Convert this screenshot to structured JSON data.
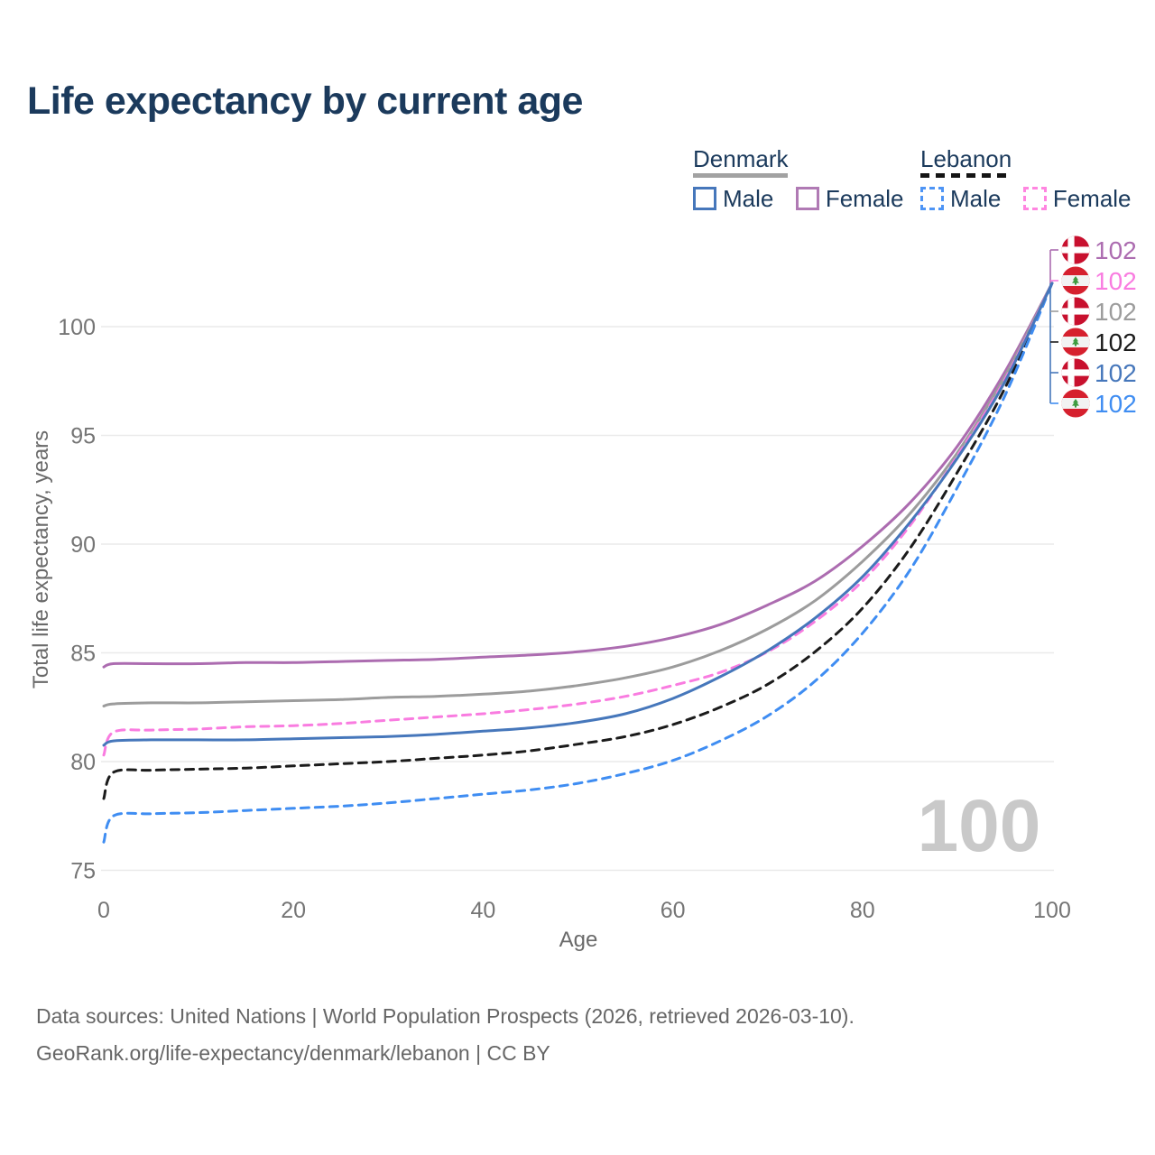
{
  "title": "Life expectancy by current age",
  "legend": {
    "groups": [
      {
        "name": "Denmark",
        "line_style": "solid",
        "line_sample_color": "#a2a2a2",
        "items": [
          {
            "label": "Male",
            "color": "#4677bb",
            "style": "solid"
          },
          {
            "label": "Female",
            "color": "#b07ab4",
            "style": "solid"
          }
        ]
      },
      {
        "name": "Lebanon",
        "line_style": "dashed",
        "line_sample_color": "#141414",
        "items": [
          {
            "label": "Male",
            "color": "#4d94f5",
            "style": "dashed"
          },
          {
            "label": "Female",
            "color": "#ff85e0",
            "style": "dashed"
          }
        ]
      }
    ]
  },
  "y_axis": {
    "title": "Total life expectancy, years",
    "ticks": [
      75,
      80,
      85,
      90,
      95,
      100
    ]
  },
  "x_axis": {
    "title": "Age",
    "ticks": [
      0,
      20,
      40,
      60,
      80,
      100
    ]
  },
  "age_indicator_watermark": "100",
  "end_labels": [
    {
      "flag": "denmark",
      "series": "Denmark Female",
      "value": "102",
      "color": "#ac6cb0"
    },
    {
      "flag": "lebanon",
      "series": "Lebanon Female",
      "value": "102",
      "color": "#f97ce0"
    },
    {
      "flag": "denmark",
      "series": "Denmark Total",
      "value": "102",
      "color": "#9c9c9c"
    },
    {
      "flag": "lebanon",
      "series": "Lebanon Total",
      "value": "102",
      "color": "#1b1b1b"
    },
    {
      "flag": "denmark",
      "series": "Denmark Male",
      "value": "102",
      "color": "#4677bb"
    },
    {
      "flag": "lebanon",
      "series": "Lebanon Male",
      "value": "102",
      "color": "#3f8df2"
    }
  ],
  "footer": {
    "line1": "Data sources: United Nations | World Population Prospects (2026, retrieved 2026-03-10).",
    "line2": "GeoRank.org/life-expectancy/denmark/lebanon | CC BY"
  },
  "chart_data": {
    "type": "line",
    "title": "Life expectancy by current age",
    "xlabel": "Age",
    "ylabel": "Total life expectancy, years",
    "xlim": [
      0,
      100
    ],
    "ylim": [
      75,
      102.5
    ],
    "grid": "horizontal",
    "legend_position": "top-right",
    "x": [
      0,
      1,
      5,
      10,
      15,
      20,
      25,
      30,
      35,
      40,
      45,
      50,
      55,
      60,
      65,
      70,
      75,
      80,
      85,
      90,
      95,
      100
    ],
    "series": [
      {
        "name": "Denmark Female",
        "country": "Denmark",
        "sex": "Female",
        "style": "solid",
        "color": "#ac6cb0",
        "values": [
          84.35,
          84.5,
          84.5,
          84.5,
          84.55,
          84.55,
          84.6,
          84.65,
          84.7,
          84.8,
          84.9,
          85.05,
          85.3,
          85.7,
          86.3,
          87.2,
          88.3,
          89.9,
          91.9,
          94.5,
          97.9,
          102
        ]
      },
      {
        "name": "Denmark Total",
        "country": "Denmark",
        "sex": "All",
        "style": "solid",
        "color": "#9c9c9c",
        "values": [
          82.55,
          82.65,
          82.7,
          82.7,
          82.75,
          82.8,
          82.85,
          82.95,
          83.0,
          83.1,
          83.25,
          83.5,
          83.85,
          84.35,
          85.1,
          86.1,
          87.4,
          89.2,
          91.4,
          94.2,
          97.7,
          102
        ]
      },
      {
        "name": "Lebanon Female",
        "country": "Lebanon",
        "sex": "Female",
        "style": "dashed",
        "color": "#f97ce0",
        "values": [
          80.3,
          81.35,
          81.45,
          81.5,
          81.6,
          81.65,
          81.75,
          81.9,
          82.05,
          82.2,
          82.4,
          82.65,
          83.0,
          83.5,
          84.1,
          85.05,
          86.45,
          88.3,
          90.85,
          94.05,
          97.55,
          102
        ]
      },
      {
        "name": "Denmark Male",
        "country": "Denmark",
        "sex": "Male",
        "style": "solid",
        "color": "#4677bb",
        "values": [
          80.75,
          80.95,
          81.0,
          81.0,
          81.0,
          81.05,
          81.1,
          81.15,
          81.25,
          81.4,
          81.55,
          81.8,
          82.2,
          82.9,
          83.9,
          85.1,
          86.6,
          88.5,
          91.0,
          93.95,
          97.45,
          102
        ]
      },
      {
        "name": "Lebanon Total",
        "country": "Lebanon",
        "sex": "All",
        "style": "dashed",
        "color": "#1b1b1b",
        "values": [
          78.3,
          79.5,
          79.6,
          79.65,
          79.7,
          79.8,
          79.9,
          80.0,
          80.15,
          80.3,
          80.5,
          80.8,
          81.15,
          81.7,
          82.5,
          83.55,
          85.05,
          87.05,
          89.8,
          93.3,
          97.15,
          102
        ]
      },
      {
        "name": "Lebanon Male",
        "country": "Lebanon",
        "sex": "Male",
        "style": "dashed",
        "color": "#3f8df2",
        "values": [
          76.3,
          77.5,
          77.6,
          77.65,
          77.75,
          77.85,
          77.95,
          78.1,
          78.3,
          78.5,
          78.7,
          79.0,
          79.45,
          80.05,
          80.95,
          82.1,
          83.7,
          85.9,
          88.8,
          92.6,
          96.8,
          102
        ]
      }
    ],
    "end_value_at_age_100": 102
  }
}
